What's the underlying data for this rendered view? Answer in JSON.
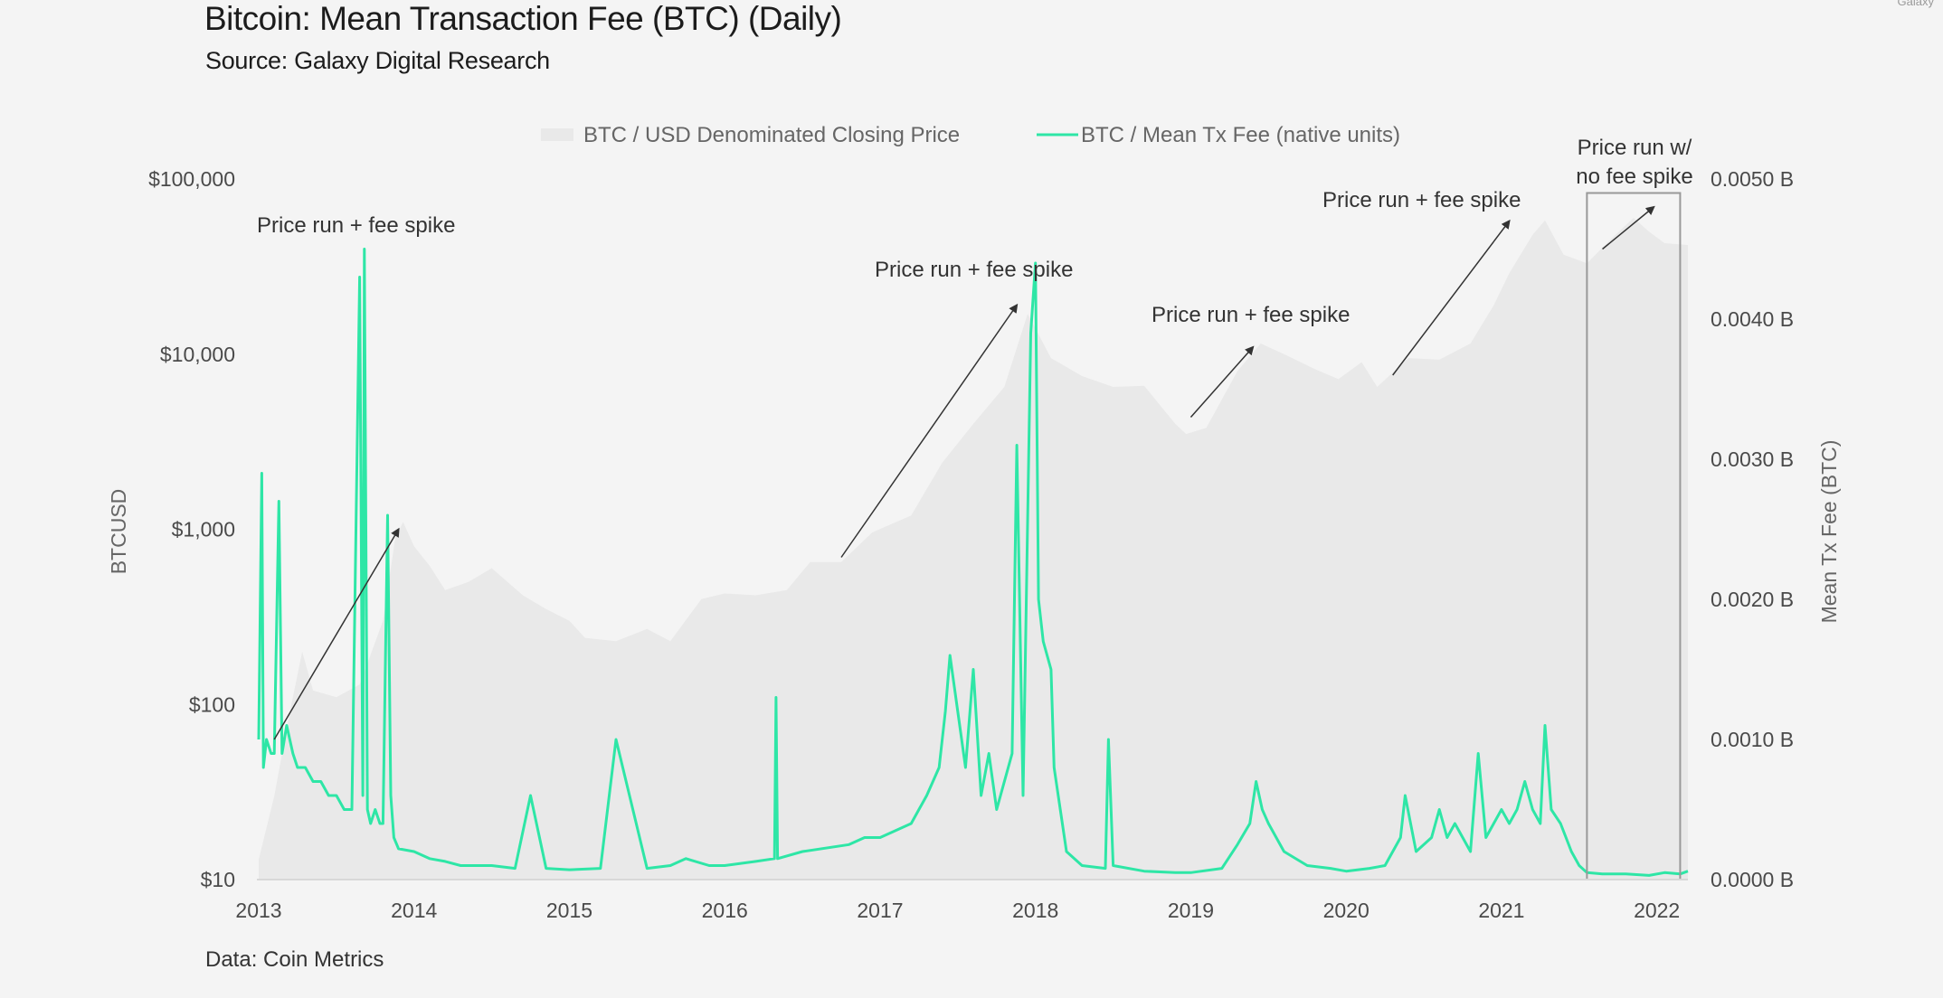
{
  "header": {
    "title": "Bitcoin: Mean Transaction Fee (BTC) (Daily)",
    "subtitle": "Source: Galaxy Digital Research",
    "corner_mark": "Galaxy"
  },
  "footer": {
    "data_source": "Data: Coin Metrics"
  },
  "colors": {
    "fee_line": "#2ee6a6",
    "price_area": "#e9e9e9",
    "background": "#f4f4f4",
    "annotation": "#333333",
    "box": "#999999"
  },
  "chart_data": {
    "type": "line",
    "title": "Bitcoin: Mean Transaction Fee (BTC) (Daily)",
    "legend": [
      {
        "name": "BTC / USD Denominated Closing Price",
        "kind": "area"
      },
      {
        "name": "BTC / Mean Tx Fee (native units)",
        "kind": "line"
      }
    ],
    "legend_placement": "top-center",
    "grid": false,
    "x_axis": {
      "ticks": [
        "2013",
        "2014",
        "2015",
        "2016",
        "2017",
        "2018",
        "2019",
        "2020",
        "2021",
        "2022"
      ],
      "range": [
        2013.0,
        2022.2
      ]
    },
    "y_left": {
      "label": "BTCUSD",
      "scale": "log",
      "range": [
        10,
        100000
      ],
      "ticks": [
        "$10",
        "$100",
        "$1,000",
        "$10,000",
        "$100,000"
      ],
      "tick_values": [
        10,
        100,
        1000,
        10000,
        100000
      ]
    },
    "y_right": {
      "label": "Mean Tx Fee (BTC)",
      "scale": "linear",
      "range": [
        0,
        0.005
      ],
      "ticks": [
        "0.0000 B",
        "0.0010 B",
        "0.0020 B",
        "0.0030 B",
        "0.0040 B",
        "0.0050 B"
      ],
      "tick_values": [
        0,
        0.001,
        0.002,
        0.003,
        0.004,
        0.005
      ]
    },
    "series": [
      {
        "name": "BTC / USD Denominated Closing Price",
        "axis": "left",
        "x": [
          2013.0,
          2013.1,
          2013.2,
          2013.28,
          2013.35,
          2013.5,
          2013.65,
          2013.8,
          2013.88,
          2013.93,
          2014.0,
          2014.1,
          2014.2,
          2014.35,
          2014.5,
          2014.7,
          2014.85,
          2015.0,
          2015.1,
          2015.3,
          2015.5,
          2015.65,
          2015.85,
          2016.0,
          2016.2,
          2016.4,
          2016.55,
          2016.75,
          2016.95,
          2017.2,
          2017.4,
          2017.6,
          2017.8,
          2017.95,
          2018.0,
          2018.1,
          2018.3,
          2018.5,
          2018.7,
          2018.9,
          2018.97,
          2019.1,
          2019.3,
          2019.45,
          2019.6,
          2019.8,
          2019.95,
          2020.1,
          2020.2,
          2020.4,
          2020.6,
          2020.8,
          2020.95,
          2021.05,
          2021.2,
          2021.28,
          2021.4,
          2021.55,
          2021.7,
          2021.85,
          2021.95,
          2022.05,
          2022.2
        ],
        "values": [
          13,
          30,
          90,
          200,
          120,
          110,
          130,
          300,
          900,
          1100,
          800,
          620,
          450,
          500,
          600,
          420,
          350,
          300,
          240,
          230,
          270,
          230,
          400,
          430,
          420,
          450,
          650,
          650,
          960,
          1200,
          2400,
          4000,
          6500,
          17000,
          14000,
          9500,
          7500,
          6500,
          6600,
          4000,
          3500,
          3800,
          8000,
          11500,
          10000,
          8200,
          7200,
          9000,
          6500,
          9500,
          9300,
          11500,
          19000,
          29000,
          48000,
          58000,
          37000,
          33000,
          45000,
          60000,
          50000,
          43000,
          42000
        ]
      },
      {
        "name": "BTC / Mean Tx Fee (native units)",
        "axis": "right",
        "x": [
          2013.0,
          2013.02,
          2013.03,
          2013.05,
          2013.08,
          2013.1,
          2013.13,
          2013.15,
          2013.18,
          2013.22,
          2013.25,
          2013.3,
          2013.35,
          2013.4,
          2013.45,
          2013.5,
          2013.55,
          2013.6,
          2013.65,
          2013.67,
          2013.68,
          2013.7,
          2013.72,
          2013.75,
          2013.78,
          2013.8,
          2013.83,
          2013.85,
          2013.87,
          2013.9,
          2014.0,
          2014.1,
          2014.2,
          2014.3,
          2014.5,
          2014.65,
          2014.75,
          2014.85,
          2015.0,
          2015.2,
          2015.3,
          2015.5,
          2015.65,
          2015.75,
          2015.9,
          2016.0,
          2016.2,
          2016.32,
          2016.33,
          2016.34,
          2016.5,
          2016.8,
          2016.9,
          2017.0,
          2017.2,
          2017.3,
          2017.38,
          2017.42,
          2017.45,
          2017.5,
          2017.55,
          2017.6,
          2017.65,
          2017.7,
          2017.75,
          2017.85,
          2017.88,
          2017.92,
          2017.97,
          2018.0,
          2018.02,
          2018.05,
          2018.1,
          2018.12,
          2018.2,
          2018.3,
          2018.45,
          2018.47,
          2018.5,
          2018.7,
          2018.9,
          2019.0,
          2019.2,
          2019.3,
          2019.38,
          2019.42,
          2019.46,
          2019.5,
          2019.6,
          2019.75,
          2019.9,
          2020.0,
          2020.15,
          2020.25,
          2020.35,
          2020.38,
          2020.45,
          2020.55,
          2020.6,
          2020.65,
          2020.7,
          2020.8,
          2020.85,
          2020.9,
          2020.95,
          2021.0,
          2021.05,
          2021.1,
          2021.15,
          2021.2,
          2021.25,
          2021.28,
          2021.32,
          2021.38,
          2021.45,
          2021.5,
          2021.55,
          2021.65,
          2021.8,
          2021.95,
          2022.05,
          2022.15,
          2022.2
        ],
        "values": [
          0.001,
          0.0029,
          0.0008,
          0.001,
          0.0009,
          0.0009,
          0.0027,
          0.0009,
          0.0011,
          0.0009,
          0.0008,
          0.0008,
          0.0007,
          0.0007,
          0.0006,
          0.0006,
          0.0005,
          0.0005,
          0.0043,
          0.0006,
          0.0045,
          0.0005,
          0.0004,
          0.0005,
          0.0004,
          0.0004,
          0.0026,
          0.0006,
          0.0003,
          0.00022,
          0.0002,
          0.00015,
          0.00013,
          0.0001,
          0.0001,
          8e-05,
          0.0006,
          8e-05,
          7e-05,
          8e-05,
          0.001,
          8e-05,
          0.0001,
          0.00015,
          0.0001,
          0.0001,
          0.00013,
          0.00015,
          0.0013,
          0.00015,
          0.0002,
          0.00025,
          0.0003,
          0.0003,
          0.0004,
          0.0006,
          0.0008,
          0.0012,
          0.0016,
          0.0012,
          0.0008,
          0.0015,
          0.0006,
          0.0009,
          0.0005,
          0.0009,
          0.0031,
          0.0006,
          0.0039,
          0.0044,
          0.002,
          0.0017,
          0.0015,
          0.0008,
          0.0002,
          0.0001,
          8e-05,
          0.001,
          0.0001,
          6e-05,
          5e-05,
          5e-05,
          8e-05,
          0.00025,
          0.0004,
          0.0007,
          0.0005,
          0.0004,
          0.0002,
          0.0001,
          8e-05,
          6e-05,
          8e-05,
          0.0001,
          0.0003,
          0.0006,
          0.0002,
          0.0003,
          0.0005,
          0.0003,
          0.0004,
          0.0002,
          0.0009,
          0.0003,
          0.0004,
          0.0005,
          0.0004,
          0.0005,
          0.0007,
          0.0005,
          0.0004,
          0.0011,
          0.0005,
          0.0004,
          0.0002,
          0.0001,
          5e-05,
          4e-05,
          4e-05,
          3e-05,
          5e-05,
          4e-05,
          6e-05
        ]
      }
    ],
    "annotations": [
      {
        "text": "Price run + fee spike",
        "from": {
          "x": 2013.1,
          "y": 0.001
        },
        "to": {
          "x": 2013.9,
          "y": 0.0025
        }
      },
      {
        "text": "Price run + fee spike",
        "from": {
          "x": 2016.75,
          "y": 0.0023
        },
        "to": {
          "x": 2017.88,
          "y": 0.0041
        }
      },
      {
        "text": "Price run + fee spike",
        "from": {
          "x": 2019.0,
          "y": 0.0033
        },
        "to": {
          "x": 2019.4,
          "y": 0.0038
        }
      },
      {
        "text": "Price run + fee spike",
        "from": {
          "x": 2020.3,
          "y": 0.0036
        },
        "to": {
          "x": 2021.05,
          "y": 0.0047
        }
      },
      {
        "text_lines": [
          "Price run w/",
          "no fee spike"
        ],
        "from": {
          "x": 2021.65,
          "y": 0.0045
        },
        "to": {
          "x": 2021.98,
          "y": 0.0048
        }
      }
    ],
    "highlight_box": {
      "x_range": [
        2021.55,
        2022.15
      ],
      "y_range": [
        0,
        0.0049
      ]
    }
  }
}
